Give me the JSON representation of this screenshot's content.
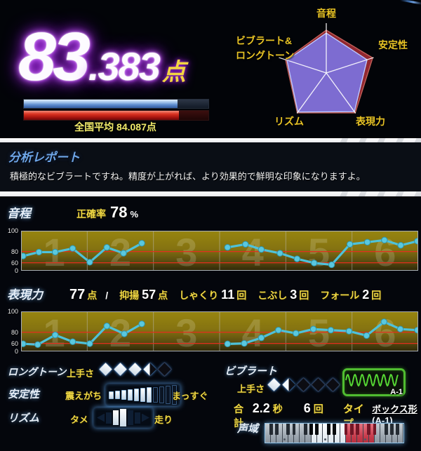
{
  "header": {
    "score_int": "83",
    "score_frac": ".383",
    "score_unit": "点",
    "your_bar_pct": 83.4,
    "average_bar_pct": 84.1,
    "national_average_label": "全国平均 84.087点",
    "score_glow_color": "#a82ce8",
    "your_bar_color": "#5d8cce",
    "average_bar_color": "#da3322"
  },
  "radar": {
    "axes": [
      {
        "label": "音程"
      },
      {
        "label": "安定性"
      },
      {
        "label": "表現力"
      },
      {
        "label": "リズム"
      },
      {
        "label": "ビブラート&\nロングトーン"
      }
    ],
    "series": [
      {
        "name": "reference",
        "color": "rgba(158,42,52,0.92)",
        "stroke": "#c06058",
        "values": [
          0.86,
          0.98,
          0.99,
          0.99,
          0.86
        ]
      },
      {
        "name": "your-performance",
        "color": "rgba(124,112,218,0.95)",
        "stroke": "#bcc8ff",
        "values": [
          0.8,
          0.86,
          0.96,
          0.97,
          0.83
        ]
      }
    ]
  },
  "report": {
    "title": "分析レポート",
    "body": "積極的なビブラートですね。精度が上がれば、より効果的で鮮明な印象になりますよ。"
  },
  "pitch": {
    "label": "音程",
    "accuracy_label": "正確率",
    "accuracy_value": "78",
    "accuracy_unit": "%"
  },
  "expression": {
    "label": "表現力",
    "score": "77",
    "score_unit": "点",
    "separator": "/",
    "metrics": [
      {
        "label": "抑揚",
        "value": "57",
        "unit": "点"
      },
      {
        "label": "しゃくり",
        "value": "11",
        "unit": "回"
      },
      {
        "label": "こぶし",
        "value": "3",
        "unit": "回"
      },
      {
        "label": "フォール",
        "value": "2",
        "unit": "回"
      }
    ]
  },
  "chart_data": [
    {
      "type": "line",
      "name": "pitch-accuracy-graph",
      "title": "音程グラフ",
      "ylim": [
        0,
        100
      ],
      "ytick_labels": [
        "100",
        "80",
        "60",
        "0"
      ],
      "ytick_values": [
        100,
        80,
        60,
        0
      ],
      "reference_lines": [
        80,
        60
      ],
      "section_labels": [
        "1",
        "2",
        "3",
        "4",
        "5",
        "6"
      ],
      "line_color": "#4ec2da",
      "runs": [
        {
          "x": [
            0.005,
            0.045,
            0.086,
            0.13,
            0.173,
            0.216,
            0.258,
            0.304
          ],
          "values": [
            72,
            79,
            79,
            83,
            61,
            84,
            77,
            88
          ]
        },
        {
          "x": [
            0.52,
            0.565,
            0.605,
            0.652,
            0.695,
            0.738,
            0.782,
            0.828,
            0.872,
            0.915,
            0.956,
            0.998
          ],
          "values": [
            84,
            87,
            82,
            77,
            67,
            58,
            45,
            87,
            89,
            91,
            86,
            90
          ]
        }
      ]
    },
    {
      "type": "line",
      "name": "expression-graph",
      "title": "表現力グラフ",
      "ylim": [
        0,
        100
      ],
      "ytick_labels": [
        "100",
        "80",
        "60",
        "0"
      ],
      "ytick_values": [
        100,
        80,
        60,
        0
      ],
      "reference_lines": [
        80,
        60
      ],
      "section_labels": [
        "1",
        "2",
        "3",
        "4",
        "5",
        "6"
      ],
      "line_color": "#4ec2da",
      "runs": [
        {
          "x": [
            0.005,
            0.042,
            0.086,
            0.13,
            0.173,
            0.216,
            0.26,
            0.304
          ],
          "values": [
            57,
            51,
            75,
            63,
            58,
            86,
            77,
            88
          ]
        },
        {
          "x": [
            0.52,
            0.562,
            0.605,
            0.648,
            0.692,
            0.736,
            0.78,
            0.826,
            0.87,
            0.914,
            0.955,
            0.998
          ],
          "values": [
            56,
            60,
            70,
            82,
            78,
            83,
            82,
            81,
            74,
            90,
            83,
            82
          ]
        }
      ]
    }
  ],
  "longtone": {
    "label": "ロングトーン",
    "skill_label": "上手さ",
    "diamonds": [
      "full",
      "full",
      "full",
      "half",
      "empty"
    ]
  },
  "stability": {
    "label": "安定性",
    "left_label": "震えがち",
    "right_label": "まっすぐ",
    "segment_count": 11,
    "filled_count": 7
  },
  "rhythm": {
    "label": "リズム",
    "left_label": "タメ",
    "right_label": "走り",
    "segment_count": 7,
    "highlighted": [
      2,
      3
    ]
  },
  "vibrato": {
    "label": "ビブラート",
    "skill_label": "上手さ",
    "diamonds": [
      "full",
      "half",
      "empty",
      "empty",
      "empty"
    ],
    "total_label": "合計",
    "total_value": "2.2",
    "total_unit": "秒",
    "count_value": "6",
    "count_unit": "回",
    "type_label": "タイプ",
    "type_value": "ボックス形(A-1)",
    "wave_tag": "A-1",
    "wave_color": "#55d633"
  },
  "range": {
    "label": "声域",
    "white_key_count": 24,
    "zones": [
      {
        "from": 0,
        "to": 7,
        "kind": "gray"
      },
      {
        "from": 8,
        "to": 13,
        "kind": "white"
      },
      {
        "from": 14,
        "to": 18,
        "kind": "red"
      },
      {
        "from": 19,
        "to": 23,
        "kind": "gray"
      }
    ],
    "dot_keys": [
      3,
      10,
      17
    ]
  }
}
